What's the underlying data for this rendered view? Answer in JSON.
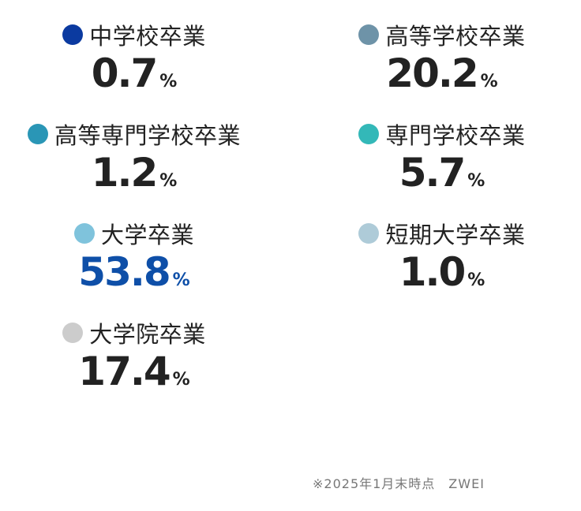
{
  "items": [
    {
      "label": "中学校卒業",
      "value": "0.7",
      "unit": "%",
      "color": "#0b3aa0",
      "value_color": "#222222"
    },
    {
      "label": "高等学校卒業",
      "value": "20.2",
      "unit": "%",
      "color": "#6e93a8",
      "value_color": "#222222"
    },
    {
      "label": "高等専門学校卒業",
      "value": "1.2",
      "unit": "%",
      "color": "#2a96b6",
      "value_color": "#222222"
    },
    {
      "label": "専門学校卒業",
      "value": "5.7",
      "unit": "%",
      "color": "#33b8b8",
      "value_color": "#222222"
    },
    {
      "label": "大学卒業",
      "value": "53.8",
      "unit": "%",
      "color": "#7fc3dc",
      "value_color": "#0e4fa8"
    },
    {
      "label": "短期大学卒業",
      "value": "1.0",
      "unit": "%",
      "color": "#aecbd8",
      "value_color": "#222222"
    },
    {
      "label": "大学院卒業",
      "value": "17.4",
      "unit": "%",
      "color": "#cccccc",
      "value_color": "#222222"
    }
  ],
  "note": "※2025年1月末時点　ZWEI"
}
